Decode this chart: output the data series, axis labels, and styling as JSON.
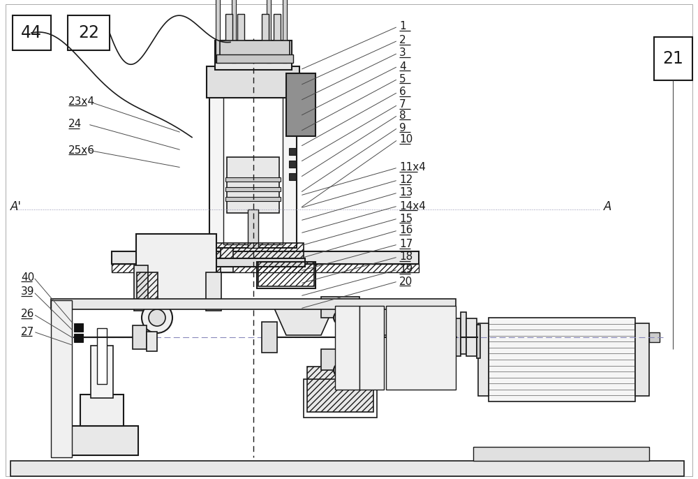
{
  "bg_color": "#ffffff",
  "lc": "#4a4a4a",
  "dc": "#1a1a1a",
  "gc": "#b0b0b0",
  "fig_width": 10.0,
  "fig_height": 6.86,
  "right_labels_top": [
    "1",
    "2",
    "3",
    "4",
    "5",
    "6",
    "7",
    "8",
    "9",
    "10"
  ],
  "right_labels_bot": [
    "11x4",
    "12",
    "13",
    "14x4",
    "15",
    "16",
    "17",
    "18",
    "19",
    "20"
  ],
  "left_labels_top": [
    "23x4",
    "24",
    "25x6"
  ],
  "left_labels_bot": [
    "40",
    "39",
    "26",
    "27"
  ],
  "box_labels": [
    "44",
    "22",
    "21"
  ],
  "A_left": "A'",
  "A_right": "A"
}
